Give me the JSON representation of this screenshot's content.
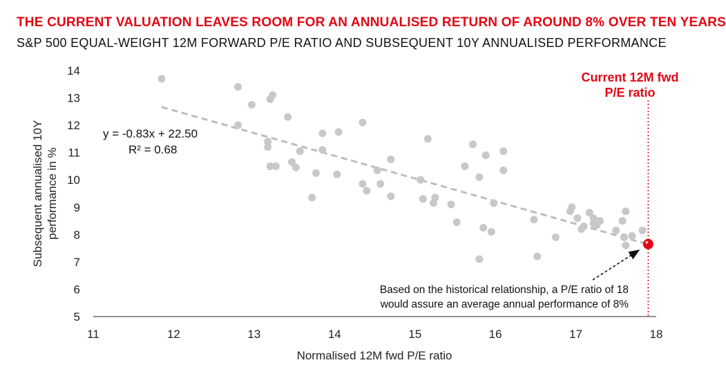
{
  "title": "THE CURRENT VALUATION LEAVES ROOM FOR AN ANNUALISED RETURN OF AROUND 8% OVER TEN YEARS",
  "subtitle": "S&P 500 EQUAL-WEIGHT 12M FORWARD P/E RATIO AND SUBSEQUENT 10Y ANNUALISED PERFORMANCE",
  "colors": {
    "accent": "#e30613",
    "points": "#c8c8c8",
    "trend": "#bdbdbd"
  },
  "chart_data": {
    "type": "scatter",
    "xlabel": "Normalised 12M fwd P/E ratio",
    "ylabel": [
      "Subsequent annualised 10Y",
      "performance in %"
    ],
    "xlim": [
      11,
      18
    ],
    "ylim": [
      5,
      14
    ],
    "xticks": [
      11,
      12,
      13,
      14,
      15,
      16,
      17,
      18
    ],
    "yticks": [
      5,
      6,
      7,
      8,
      9,
      10,
      11,
      12,
      13,
      14
    ],
    "grid": false,
    "points": [
      {
        "x": 11.85,
        "y": 13.7
      },
      {
        "x": 12.8,
        "y": 13.4
      },
      {
        "x": 12.8,
        "y": 12.0
      },
      {
        "x": 12.97,
        "y": 12.75
      },
      {
        "x": 13.2,
        "y": 12.95
      },
      {
        "x": 13.23,
        "y": 13.1
      },
      {
        "x": 13.17,
        "y": 11.4
      },
      {
        "x": 13.17,
        "y": 11.2
      },
      {
        "x": 13.2,
        "y": 10.5
      },
      {
        "x": 13.27,
        "y": 10.5
      },
      {
        "x": 13.42,
        "y": 12.3
      },
      {
        "x": 13.47,
        "y": 10.65
      },
      {
        "x": 13.52,
        "y": 10.45
      },
      {
        "x": 13.57,
        "y": 11.05
      },
      {
        "x": 13.72,
        "y": 9.35
      },
      {
        "x": 13.77,
        "y": 10.25
      },
      {
        "x": 13.85,
        "y": 11.7
      },
      {
        "x": 13.85,
        "y": 11.1
      },
      {
        "x": 14.03,
        "y": 10.2
      },
      {
        "x": 14.05,
        "y": 11.75
      },
      {
        "x": 14.35,
        "y": 12.1
      },
      {
        "x": 14.35,
        "y": 9.85
      },
      {
        "x": 14.4,
        "y": 9.6
      },
      {
        "x": 14.53,
        "y": 10.35
      },
      {
        "x": 14.57,
        "y": 9.85
      },
      {
        "x": 14.7,
        "y": 10.75
      },
      {
        "x": 14.7,
        "y": 9.4
      },
      {
        "x": 15.07,
        "y": 10.0
      },
      {
        "x": 15.1,
        "y": 9.3
      },
      {
        "x": 15.16,
        "y": 11.5
      },
      {
        "x": 15.23,
        "y": 9.15
      },
      {
        "x": 15.25,
        "y": 9.35
      },
      {
        "x": 15.45,
        "y": 9.1
      },
      {
        "x": 15.52,
        "y": 8.45
      },
      {
        "x": 15.62,
        "y": 10.5
      },
      {
        "x": 15.72,
        "y": 11.3
      },
      {
        "x": 15.8,
        "y": 10.1
      },
      {
        "x": 15.8,
        "y": 7.1
      },
      {
        "x": 15.85,
        "y": 8.25
      },
      {
        "x": 15.88,
        "y": 10.9
      },
      {
        "x": 15.95,
        "y": 8.1
      },
      {
        "x": 15.98,
        "y": 9.15
      },
      {
        "x": 16.1,
        "y": 11.05
      },
      {
        "x": 16.1,
        "y": 10.35
      },
      {
        "x": 16.48,
        "y": 8.55
      },
      {
        "x": 16.52,
        "y": 7.2
      },
      {
        "x": 16.75,
        "y": 7.9
      },
      {
        "x": 16.93,
        "y": 8.85
      },
      {
        "x": 16.95,
        "y": 9.0
      },
      {
        "x": 17.02,
        "y": 8.6
      },
      {
        "x": 17.07,
        "y": 8.2
      },
      {
        "x": 17.1,
        "y": 8.3
      },
      {
        "x": 17.17,
        "y": 8.8
      },
      {
        "x": 17.22,
        "y": 8.6
      },
      {
        "x": 17.22,
        "y": 8.4
      },
      {
        "x": 17.26,
        "y": 8.35
      },
      {
        "x": 17.3,
        "y": 8.5
      },
      {
        "x": 17.5,
        "y": 8.15
      },
      {
        "x": 17.58,
        "y": 8.5
      },
      {
        "x": 17.6,
        "y": 7.9
      },
      {
        "x": 17.62,
        "y": 8.85
      },
      {
        "x": 17.62,
        "y": 7.6
      },
      {
        "x": 17.7,
        "y": 7.95
      },
      {
        "x": 17.83,
        "y": 8.15
      }
    ],
    "trendline": {
      "slope": -0.83,
      "intercept": 22.5,
      "x_range": [
        11.85,
        17.95
      ],
      "label": "y = -0.83x + 22.50",
      "r2_label": "R² = 0.68"
    },
    "current": {
      "x": 17.9,
      "y": 7.65,
      "label": [
        "Current 12M fwd",
        "P/E ratio"
      ]
    },
    "annotation": [
      "Based on the historical relationship, a P/E ratio of 18",
      "would assure an average annual performance of 8%"
    ]
  }
}
